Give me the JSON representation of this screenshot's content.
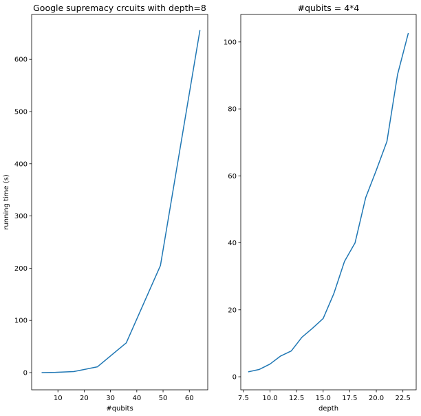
{
  "chart_data": [
    {
      "type": "line",
      "title": "Google supremacy crcuits with depth=8",
      "xlabel": "#qubits",
      "ylabel": "running time (s)",
      "xlim": [
        0,
        67
      ],
      "ylim": [
        -33,
        686
      ],
      "xticks": [
        10,
        20,
        30,
        40,
        50,
        60
      ],
      "yticks": [
        0,
        100,
        200,
        300,
        400,
        500,
        600
      ],
      "grid": false,
      "color": "#1f77b4",
      "series": [
        {
          "x": [
            4,
            9,
            16,
            25,
            36,
            49,
            64
          ],
          "y": [
            0,
            0.5,
            2,
            11,
            57,
            205,
            655
          ]
        }
      ]
    },
    {
      "type": "line",
      "title": "#qubits = 4*4",
      "xlabel": "depth",
      "ylabel": "",
      "xlim": [
        7.25,
        23.75
      ],
      "ylim": [
        -3.9,
        108.2
      ],
      "xticks": [
        7.5,
        10.0,
        12.5,
        15.0,
        17.5,
        20.0,
        22.5
      ],
      "yticks": [
        0,
        20,
        40,
        60,
        80,
        100
      ],
      "grid": false,
      "color": "#1f77b4",
      "series": [
        {
          "x": [
            8,
            9,
            10,
            11,
            12,
            13,
            14,
            15,
            16,
            17,
            18,
            19,
            20,
            21,
            22,
            23
          ],
          "y": [
            1.5,
            2.2,
            3.8,
            6.2,
            7.7,
            11.8,
            14.5,
            17.4,
            24.8,
            34.4,
            40.0,
            53.5,
            61.7,
            70.3,
            90.3,
            102.5
          ]
        }
      ]
    }
  ]
}
